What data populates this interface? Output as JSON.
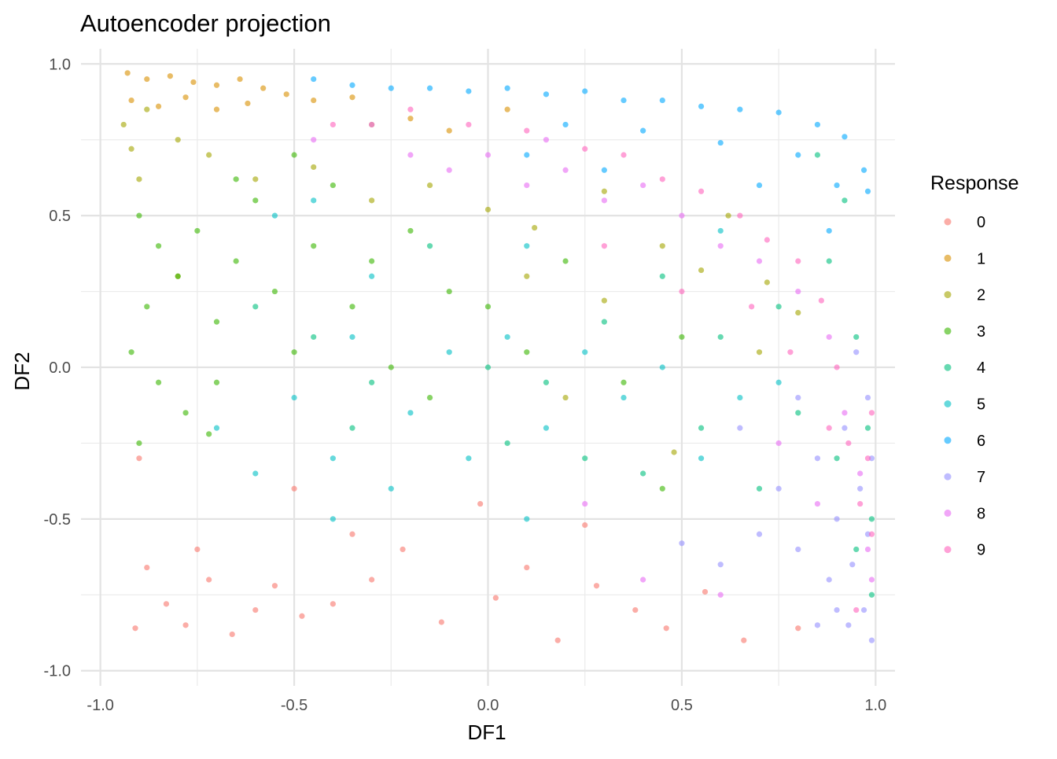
{
  "chart_data": {
    "type": "scatter",
    "title": "Autoencoder projection",
    "xlabel": "DF1",
    "ylabel": "DF2",
    "xlim": [
      -1.05,
      1.05
    ],
    "ylim": [
      -1.05,
      1.05
    ],
    "x_ticks": [
      -1.0,
      -0.5,
      0.0,
      0.5,
      1.0
    ],
    "x_tick_labels": [
      "-1.0",
      "-0.5",
      "0.0",
      "0.5",
      "1.0"
    ],
    "y_ticks": [
      -1.0,
      -0.5,
      0.0,
      0.5,
      1.0
    ],
    "y_tick_labels": [
      "-1.0",
      "-0.5",
      "0.0",
      "0.5",
      "1.0"
    ],
    "grid": true,
    "legend": {
      "title": "Response",
      "placement": "right"
    },
    "point_alpha": 0.6,
    "series": [
      {
        "name": "0",
        "color": "#F8766D",
        "points": [
          [
            -0.83,
            -0.78
          ],
          [
            -0.78,
            -0.85
          ],
          [
            -0.72,
            -0.7
          ],
          [
            -0.88,
            -0.66
          ],
          [
            -0.66,
            -0.88
          ],
          [
            -0.6,
            -0.8
          ],
          [
            -0.91,
            -0.86
          ],
          [
            -0.75,
            -0.6
          ],
          [
            -0.55,
            -0.72
          ],
          [
            -0.48,
            -0.82
          ],
          [
            -0.4,
            -0.78
          ],
          [
            -0.3,
            -0.7
          ],
          [
            -0.22,
            -0.6
          ],
          [
            -0.12,
            -0.84
          ],
          [
            0.02,
            -0.76
          ],
          [
            0.1,
            -0.66
          ],
          [
            0.18,
            -0.9
          ],
          [
            0.28,
            -0.72
          ],
          [
            0.38,
            -0.8
          ],
          [
            0.46,
            -0.86
          ],
          [
            0.56,
            -0.74
          ],
          [
            0.66,
            -0.9
          ],
          [
            0.8,
            -0.86
          ],
          [
            -0.35,
            -0.55
          ],
          [
            -0.9,
            -0.3
          ],
          [
            -0.5,
            -0.4
          ],
          [
            -0.02,
            -0.45
          ],
          [
            0.25,
            -0.52
          ]
        ]
      },
      {
        "name": "1",
        "color": "#D89000",
        "points": [
          [
            -0.93,
            0.97
          ],
          [
            -0.88,
            0.95
          ],
          [
            -0.82,
            0.96
          ],
          [
            -0.76,
            0.94
          ],
          [
            -0.7,
            0.93
          ],
          [
            -0.64,
            0.95
          ],
          [
            -0.58,
            0.92
          ],
          [
            -0.52,
            0.9
          ],
          [
            -0.92,
            0.88
          ],
          [
            -0.85,
            0.86
          ],
          [
            -0.78,
            0.89
          ],
          [
            -0.7,
            0.85
          ],
          [
            -0.62,
            0.87
          ],
          [
            -0.45,
            0.88
          ],
          [
            -0.35,
            0.89
          ],
          [
            -0.3,
            0.8
          ],
          [
            -0.2,
            0.82
          ],
          [
            -0.1,
            0.78
          ],
          [
            0.05,
            0.85
          ]
        ]
      },
      {
        "name": "2",
        "color": "#A3A500",
        "points": [
          [
            -0.94,
            0.8
          ],
          [
            -0.92,
            0.72
          ],
          [
            -0.9,
            0.62
          ],
          [
            -0.88,
            0.85
          ],
          [
            -0.8,
            0.75
          ],
          [
            -0.72,
            0.7
          ],
          [
            -0.6,
            0.62
          ],
          [
            -0.45,
            0.66
          ],
          [
            -0.3,
            0.55
          ],
          [
            -0.15,
            0.6
          ],
          [
            0.0,
            0.52
          ],
          [
            0.12,
            0.46
          ],
          [
            0.3,
            0.58
          ],
          [
            0.45,
            0.4
          ],
          [
            0.55,
            0.32
          ],
          [
            0.62,
            0.5
          ],
          [
            0.72,
            0.28
          ],
          [
            0.8,
            0.18
          ],
          [
            0.3,
            0.22
          ],
          [
            0.1,
            0.3
          ],
          [
            0.2,
            -0.1
          ],
          [
            0.48,
            -0.28
          ],
          [
            0.7,
            0.05
          ],
          [
            -0.8,
            0.3
          ]
        ]
      },
      {
        "name": "3",
        "color": "#39B600",
        "points": [
          [
            -0.9,
            0.5
          ],
          [
            -0.85,
            0.4
          ],
          [
            -0.8,
            0.3
          ],
          [
            -0.88,
            0.2
          ],
          [
            -0.75,
            0.45
          ],
          [
            -0.7,
            0.15
          ],
          [
            -0.65,
            0.35
          ],
          [
            -0.6,
            0.55
          ],
          [
            -0.55,
            0.25
          ],
          [
            -0.5,
            0.05
          ],
          [
            -0.45,
            0.4
          ],
          [
            -0.4,
            0.6
          ],
          [
            -0.35,
            0.2
          ],
          [
            -0.3,
            0.35
          ],
          [
            -0.25,
            0.0
          ],
          [
            -0.2,
            0.45
          ],
          [
            -0.15,
            -0.1
          ],
          [
            -0.1,
            0.25
          ],
          [
            -0.92,
            0.05
          ],
          [
            -0.85,
            -0.05
          ],
          [
            -0.78,
            -0.15
          ],
          [
            -0.9,
            -0.25
          ],
          [
            -0.7,
            -0.05
          ],
          [
            0.0,
            0.2
          ],
          [
            0.1,
            0.05
          ],
          [
            0.2,
            0.35
          ],
          [
            0.35,
            -0.05
          ],
          [
            0.5,
            0.1
          ],
          [
            -0.5,
            0.7
          ],
          [
            -0.65,
            0.62
          ],
          [
            -0.72,
            -0.22
          ],
          [
            0.45,
            -0.4
          ]
        ]
      },
      {
        "name": "4",
        "color": "#00BF7D",
        "points": [
          [
            -0.6,
            0.2
          ],
          [
            -0.45,
            0.1
          ],
          [
            -0.3,
            -0.05
          ],
          [
            -0.15,
            0.4
          ],
          [
            0.0,
            0.0
          ],
          [
            0.15,
            -0.05
          ],
          [
            0.3,
            0.15
          ],
          [
            0.45,
            0.3
          ],
          [
            0.6,
            0.1
          ],
          [
            0.75,
            0.2
          ],
          [
            0.88,
            0.35
          ],
          [
            0.95,
            0.1
          ],
          [
            0.98,
            -0.2
          ],
          [
            0.99,
            -0.5
          ],
          [
            0.99,
            -0.75
          ],
          [
            0.95,
            -0.6
          ],
          [
            0.9,
            -0.3
          ],
          [
            0.8,
            -0.15
          ],
          [
            0.7,
            -0.4
          ],
          [
            0.55,
            -0.2
          ],
          [
            0.4,
            -0.35
          ],
          [
            0.25,
            -0.3
          ],
          [
            0.05,
            -0.25
          ],
          [
            -0.35,
            -0.2
          ],
          [
            0.92,
            0.55
          ],
          [
            0.85,
            0.7
          ]
        ]
      },
      {
        "name": "5",
        "color": "#00BFC4",
        "points": [
          [
            -0.7,
            -0.2
          ],
          [
            -0.6,
            -0.35
          ],
          [
            -0.5,
            -0.1
          ],
          [
            -0.4,
            -0.3
          ],
          [
            -0.35,
            0.1
          ],
          [
            -0.25,
            -0.4
          ],
          [
            -0.2,
            -0.15
          ],
          [
            -0.1,
            0.05
          ],
          [
            -0.05,
            -0.3
          ],
          [
            0.05,
            0.1
          ],
          [
            0.15,
            -0.2
          ],
          [
            0.25,
            0.05
          ],
          [
            0.35,
            -0.1
          ],
          [
            0.45,
            0.0
          ],
          [
            0.55,
            -0.3
          ],
          [
            0.65,
            -0.1
          ],
          [
            0.75,
            -0.05
          ],
          [
            -0.55,
            0.5
          ],
          [
            -0.45,
            0.55
          ],
          [
            -0.3,
            0.3
          ],
          [
            0.1,
            0.4
          ],
          [
            0.6,
            0.45
          ],
          [
            -0.4,
            -0.5
          ],
          [
            0.1,
            -0.5
          ]
        ]
      },
      {
        "name": "6",
        "color": "#00A9FF",
        "points": [
          [
            -0.45,
            0.95
          ],
          [
            -0.35,
            0.93
          ],
          [
            -0.25,
            0.92
          ],
          [
            -0.15,
            0.92
          ],
          [
            -0.05,
            0.91
          ],
          [
            0.05,
            0.92
          ],
          [
            0.15,
            0.9
          ],
          [
            0.25,
            0.91
          ],
          [
            0.35,
            0.88
          ],
          [
            0.45,
            0.88
          ],
          [
            0.55,
            0.86
          ],
          [
            0.65,
            0.85
          ],
          [
            0.75,
            0.84
          ],
          [
            0.85,
            0.8
          ],
          [
            0.92,
            0.76
          ],
          [
            0.97,
            0.65
          ],
          [
            0.98,
            0.58
          ],
          [
            0.2,
            0.8
          ],
          [
            0.4,
            0.78
          ],
          [
            0.6,
            0.74
          ],
          [
            0.8,
            0.7
          ],
          [
            0.9,
            0.6
          ],
          [
            0.1,
            0.7
          ],
          [
            0.3,
            0.65
          ],
          [
            0.88,
            0.45
          ],
          [
            0.7,
            0.6
          ]
        ]
      },
      {
        "name": "7",
        "color": "#9590FF",
        "points": [
          [
            0.7,
            -0.55
          ],
          [
            0.75,
            -0.4
          ],
          [
            0.8,
            -0.6
          ],
          [
            0.85,
            -0.3
          ],
          [
            0.88,
            -0.7
          ],
          [
            0.9,
            -0.5
          ],
          [
            0.92,
            -0.2
          ],
          [
            0.94,
            -0.65
          ],
          [
            0.96,
            -0.4
          ],
          [
            0.97,
            -0.8
          ],
          [
            0.98,
            -0.55
          ],
          [
            0.99,
            -0.9
          ],
          [
            0.99,
            -0.3
          ],
          [
            0.98,
            -0.1
          ],
          [
            0.95,
            0.05
          ],
          [
            0.93,
            -0.85
          ],
          [
            0.9,
            -0.8
          ],
          [
            0.85,
            -0.85
          ],
          [
            0.6,
            -0.65
          ],
          [
            0.65,
            -0.2
          ],
          [
            0.8,
            -0.1
          ],
          [
            0.5,
            -0.58
          ]
        ]
      },
      {
        "name": "8",
        "color": "#E76BF3",
        "points": [
          [
            -0.3,
            0.8
          ],
          [
            -0.2,
            0.7
          ],
          [
            -0.1,
            0.65
          ],
          [
            0.0,
            0.7
          ],
          [
            0.1,
            0.6
          ],
          [
            0.2,
            0.65
          ],
          [
            0.3,
            0.55
          ],
          [
            0.4,
            0.6
          ],
          [
            0.5,
            0.5
          ],
          [
            0.6,
            0.4
          ],
          [
            0.7,
            0.35
          ],
          [
            0.8,
            0.25
          ],
          [
            0.88,
            0.1
          ],
          [
            0.92,
            -0.15
          ],
          [
            0.96,
            -0.35
          ],
          [
            0.98,
            -0.6
          ],
          [
            0.99,
            -0.7
          ],
          [
            0.85,
            -0.45
          ],
          [
            0.75,
            -0.25
          ],
          [
            -0.45,
            0.75
          ],
          [
            0.25,
            -0.45
          ],
          [
            0.4,
            -0.7
          ],
          [
            0.6,
            -0.75
          ],
          [
            0.15,
            0.75
          ]
        ]
      },
      {
        "name": "9",
        "color": "#FF62BC",
        "points": [
          [
            -0.2,
            0.85
          ],
          [
            -0.05,
            0.8
          ],
          [
            0.1,
            0.78
          ],
          [
            0.25,
            0.72
          ],
          [
            0.35,
            0.7
          ],
          [
            0.45,
            0.62
          ],
          [
            0.55,
            0.58
          ],
          [
            0.65,
            0.5
          ],
          [
            0.72,
            0.42
          ],
          [
            0.8,
            0.35
          ],
          [
            0.86,
            0.22
          ],
          [
            0.9,
            0.0
          ],
          [
            0.93,
            -0.25
          ],
          [
            0.96,
            -0.45
          ],
          [
            0.98,
            -0.3
          ],
          [
            0.99,
            -0.15
          ],
          [
            0.99,
            -0.55
          ],
          [
            0.88,
            -0.2
          ],
          [
            0.78,
            0.05
          ],
          [
            0.68,
            0.2
          ],
          [
            -0.4,
            0.8
          ],
          [
            0.5,
            0.25
          ],
          [
            0.3,
            0.4
          ],
          [
            0.95,
            -0.8
          ]
        ]
      }
    ]
  }
}
